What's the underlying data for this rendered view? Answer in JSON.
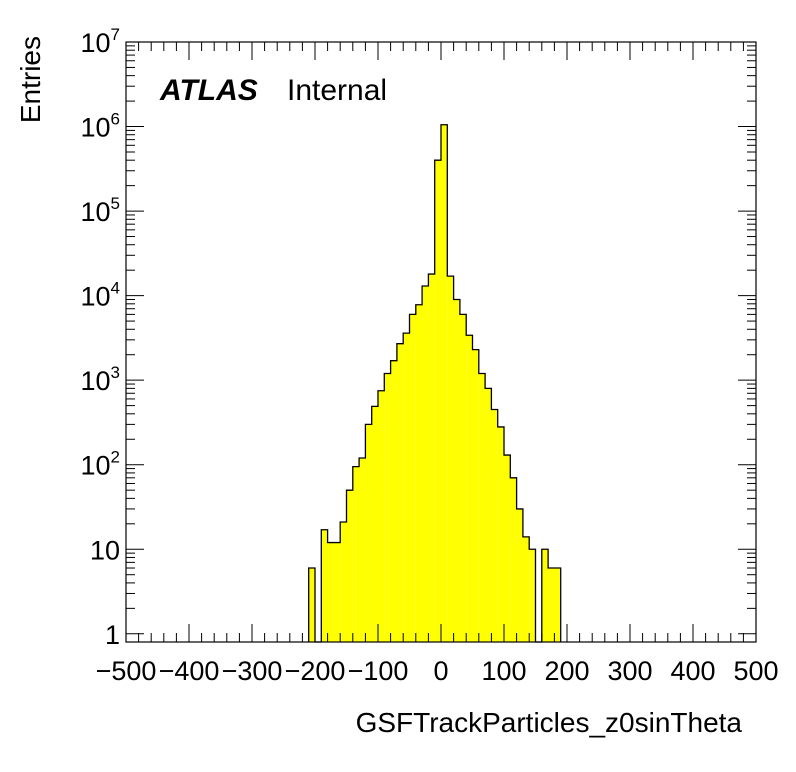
{
  "chart_data": {
    "type": "bar",
    "style": "histogram",
    "fill_color": "#ffff00",
    "line_color": "#000000",
    "xlabel": "GSFTrackParticles_z0sinTheta",
    "ylabel": "Entries",
    "label": {
      "experiment": "ATLAS",
      "status": "Internal"
    },
    "xlim": [
      -500,
      500
    ],
    "ylim": [
      0.8,
      10000000
    ],
    "yscale": "log",
    "grid": false,
    "bin_width": 10,
    "x_ticks": [
      -500,
      -400,
      -300,
      -200,
      -100,
      0,
      100,
      200,
      300,
      400,
      500
    ],
    "x_tick_labels": [
      "−500",
      "−400",
      "−300",
      "−200",
      "−100",
      "0",
      "100",
      "200",
      "300",
      "400",
      "500"
    ],
    "y_ticks": [
      {
        "value": 1,
        "base": "1",
        "exp": ""
      },
      {
        "value": 10,
        "base": "10",
        "exp": ""
      },
      {
        "value": 100,
        "base": "10",
        "exp": "2"
      },
      {
        "value": 1000,
        "base": "10",
        "exp": "3"
      },
      {
        "value": 10000,
        "base": "10",
        "exp": "4"
      },
      {
        "value": 100000,
        "base": "10",
        "exp": "5"
      },
      {
        "value": 1000000,
        "base": "10",
        "exp": "6"
      },
      {
        "value": 10000000,
        "base": "10",
        "exp": "7"
      }
    ],
    "bins": [
      {
        "x": -210,
        "value": 6
      },
      {
        "x": -200,
        "value": 0
      },
      {
        "x": -190,
        "value": 17
      },
      {
        "x": -180,
        "value": 12
      },
      {
        "x": -170,
        "value": 12
      },
      {
        "x": -160,
        "value": 21
      },
      {
        "x": -150,
        "value": 50
      },
      {
        "x": -140,
        "value": 95
      },
      {
        "x": -130,
        "value": 120
      },
      {
        "x": -120,
        "value": 300
      },
      {
        "x": -110,
        "value": 490
      },
      {
        "x": -100,
        "value": 750
      },
      {
        "x": -90,
        "value": 1200
      },
      {
        "x": -80,
        "value": 1700
      },
      {
        "x": -70,
        "value": 2700
      },
      {
        "x": -60,
        "value": 3600
      },
      {
        "x": -50,
        "value": 6000
      },
      {
        "x": -40,
        "value": 7800
      },
      {
        "x": -30,
        "value": 13000
      },
      {
        "x": -20,
        "value": 18000
      },
      {
        "x": -10,
        "value": 400000
      },
      {
        "x": 0,
        "value": 1050000
      },
      {
        "x": 10,
        "value": 17000
      },
      {
        "x": 20,
        "value": 9000
      },
      {
        "x": 30,
        "value": 6000
      },
      {
        "x": 40,
        "value": 3400
      },
      {
        "x": 50,
        "value": 2300
      },
      {
        "x": 60,
        "value": 1200
      },
      {
        "x": 70,
        "value": 800
      },
      {
        "x": 80,
        "value": 450
      },
      {
        "x": 90,
        "value": 280
      },
      {
        "x": 100,
        "value": 130
      },
      {
        "x": 110,
        "value": 70
      },
      {
        "x": 120,
        "value": 30
      },
      {
        "x": 130,
        "value": 14
      },
      {
        "x": 140,
        "value": 10
      },
      {
        "x": 150,
        "value": 0
      },
      {
        "x": 160,
        "value": 10
      },
      {
        "x": 170,
        "value": 6
      },
      {
        "x": 180,
        "value": 6
      }
    ]
  }
}
